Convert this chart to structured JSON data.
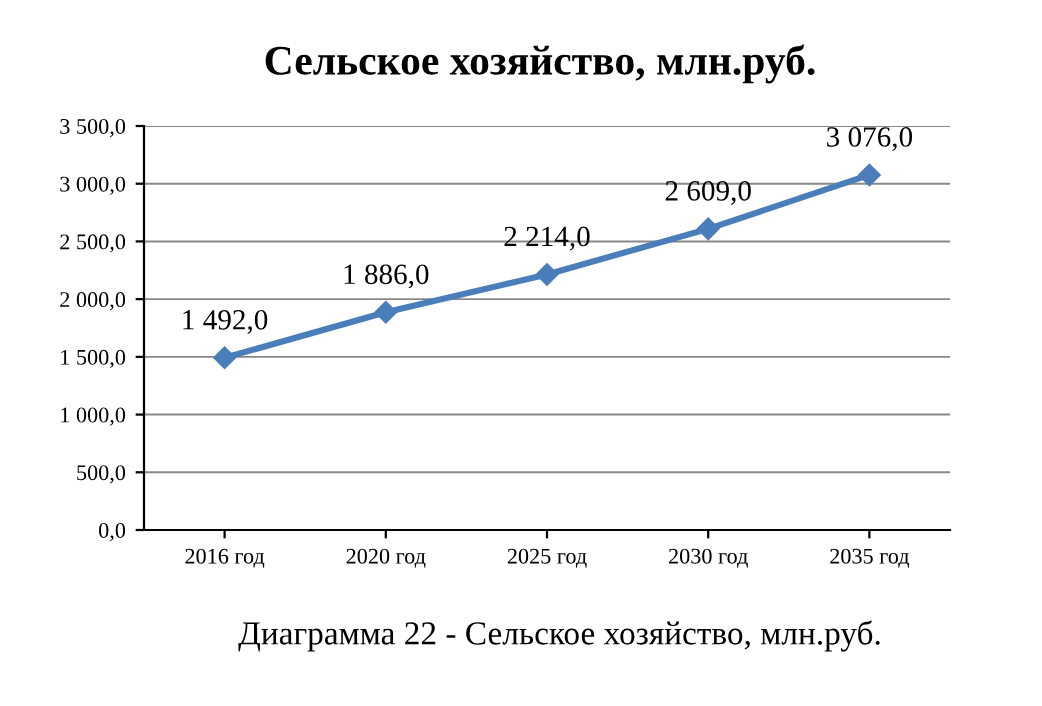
{
  "chart_data": {
    "type": "line",
    "title": "Сельское хозяйство, млн.руб.",
    "categories": [
      "2016 год",
      "2020 год",
      "2025 год",
      "2030 год",
      "2035 год"
    ],
    "series": [
      {
        "color": "#4a7ebb",
        "values": [
          1492,
          1886,
          2214,
          2609,
          3076
        ],
        "value_labels": [
          "1 492,0",
          "1 886,0",
          "2 214,0",
          "2 609,0",
          "3 076,0"
        ]
      }
    ],
    "ylim": [
      0,
      3500
    ],
    "yticks": [
      {
        "value": 0,
        "label": "0,0"
      },
      {
        "value": 500,
        "label": "500,0"
      },
      {
        "value": 1000,
        "label": "1 000,0"
      },
      {
        "value": 1500,
        "label": "1 500,0"
      },
      {
        "value": 2000,
        "label": "2 000,0"
      },
      {
        "value": 2500,
        "label": "2 500,0"
      },
      {
        "value": 3000,
        "label": "3 000,0"
      },
      {
        "value": 3500,
        "label": "3 500,0"
      }
    ],
    "grid": "y",
    "marker": "diamond",
    "line_style": "solid",
    "annotations": [
      "Диаграмма 22 - Сельское хозяйство, млн.руб."
    ]
  }
}
